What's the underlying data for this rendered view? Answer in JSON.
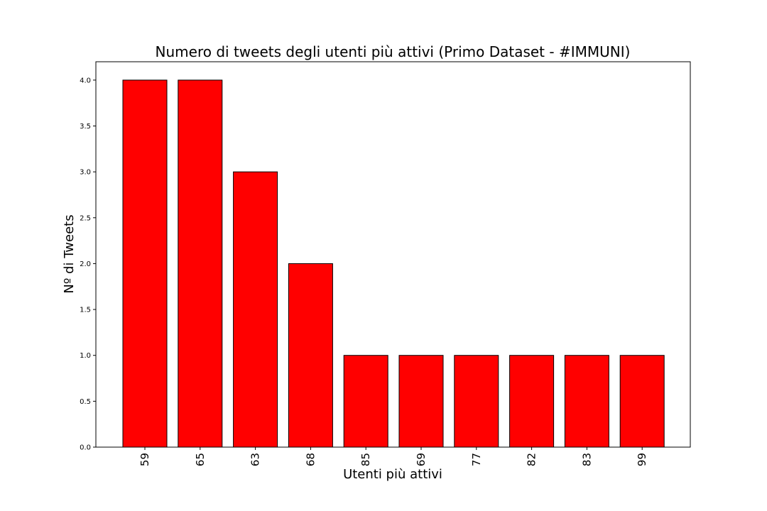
{
  "chart_data": {
    "type": "bar",
    "title": "Numero di tweets degli utenti più attivi (Primo Dataset - #IMMUNI)",
    "xlabel": "Utenti più attivi",
    "ylabel": "Nº di Tweets",
    "categories": [
      "59",
      "65",
      "63",
      "68",
      "85",
      "69",
      "77",
      "82",
      "83",
      "99"
    ],
    "values": [
      4,
      4,
      3,
      2,
      1,
      1,
      1,
      1,
      1,
      1
    ],
    "ylim": [
      0,
      4.2
    ],
    "yticks": [
      "0.0",
      "0.5",
      "1.0",
      "1.5",
      "2.0",
      "2.5",
      "3.0",
      "3.5",
      "4.0"
    ],
    "bar_color": "#ff0000",
    "bar_edge_color": "#000000",
    "grid": false,
    "xtick_rotation": "vertical"
  }
}
